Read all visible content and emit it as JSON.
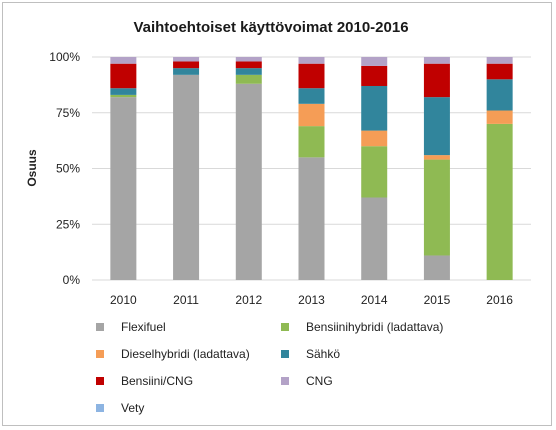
{
  "chart_data": {
    "type": "bar",
    "stacked": true,
    "title": "Vaihtoehtoiset käyttövoimat 2010-2016",
    "xlabel": "",
    "ylabel": "Osuus",
    "categories": [
      "2010",
      "2011",
      "2012",
      "2013",
      "2014",
      "2015",
      "2016"
    ],
    "y_ticks": [
      "0%",
      "25%",
      "50%",
      "75%",
      "100%"
    ],
    "ylim": [
      0,
      100
    ],
    "grid": true,
    "legend_position": "bottom",
    "series": [
      {
        "name": "Flexifuel",
        "color": "#a5a5a5",
        "values": [
          82,
          92,
          88,
          55,
          37,
          11,
          0
        ]
      },
      {
        "name": "Bensiinihybridi (ladattava)",
        "color": "#8fba53",
        "values": [
          1,
          0,
          4,
          14,
          23,
          43,
          70
        ]
      },
      {
        "name": "Dieselhybridi (ladattava)",
        "color": "#f59d56",
        "values": [
          0,
          0,
          0,
          10,
          7,
          2,
          6
        ]
      },
      {
        "name": "Sähkö",
        "color": "#31859c",
        "values": [
          3,
          3,
          3,
          7,
          20,
          26,
          14
        ]
      },
      {
        "name": "Bensiini/CNG",
        "color": "#c00000",
        "values": [
          11,
          3,
          3,
          11,
          9,
          15,
          7
        ]
      },
      {
        "name": "CNG",
        "color": "#b3a2c7",
        "values": [
          3,
          2,
          2,
          3,
          4,
          3,
          3
        ]
      },
      {
        "name": "Vety",
        "color": "#8db4e2",
        "values": [
          0,
          0,
          0,
          0,
          0,
          0,
          0
        ]
      }
    ]
  }
}
